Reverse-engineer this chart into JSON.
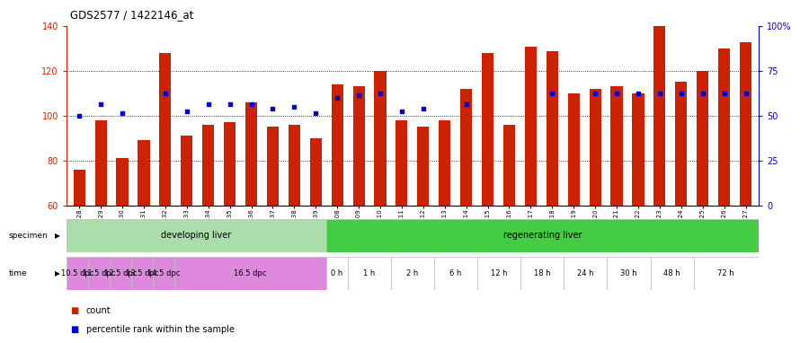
{
  "title": "GDS2577 / 1422146_at",
  "samples": [
    "GSM161128",
    "GSM161129",
    "GSM161130",
    "GSM161131",
    "GSM161132",
    "GSM161133",
    "GSM161134",
    "GSM161135",
    "GSM161136",
    "GSM161137",
    "GSM161138",
    "GSM161139",
    "GSM161108",
    "GSM161109",
    "GSM161110",
    "GSM161111",
    "GSM161112",
    "GSM161113",
    "GSM161114",
    "GSM161115",
    "GSM161116",
    "GSM161117",
    "GSM161118",
    "GSM161119",
    "GSM161120",
    "GSM161121",
    "GSM161122",
    "GSM161123",
    "GSM161124",
    "GSM161125",
    "GSM161126",
    "GSM161127"
  ],
  "bar_values": [
    76,
    98,
    81,
    89,
    128,
    91,
    96,
    97,
    106,
    95,
    96,
    90,
    114,
    113,
    120,
    98,
    95,
    98,
    112,
    128,
    96,
    131,
    129,
    110,
    112,
    113,
    110,
    140,
    115,
    120,
    130,
    133
  ],
  "dot_values": [
    100,
    105,
    101,
    null,
    110,
    102,
    105,
    105,
    105,
    103,
    104,
    101,
    108,
    109,
    110,
    102,
    103,
    null,
    105,
    null,
    null,
    null,
    110,
    null,
    110,
    110,
    110,
    110,
    110,
    110,
    110,
    110
  ],
  "bar_color": "#cc2200",
  "dot_color": "#0000cc",
  "ylim_left": [
    60,
    140
  ],
  "ylim_right": [
    0,
    100
  ],
  "yticks_left": [
    60,
    80,
    100,
    120,
    140
  ],
  "yticks_right": [
    0,
    25,
    50,
    75,
    100
  ],
  "grid_values": [
    80,
    100,
    120
  ],
  "specimen_groups": [
    {
      "label": "developing liver",
      "start": 0,
      "end": 11,
      "color": "#aaddaa"
    },
    {
      "label": "regenerating liver",
      "start": 12,
      "end": 31,
      "color": "#44cc44"
    }
  ],
  "time_groups": [
    {
      "label": "10.5 dpc",
      "start": 0,
      "end": 0,
      "color": "#dd88dd"
    },
    {
      "label": "11.5 dpc",
      "start": 1,
      "end": 1,
      "color": "#dd88dd"
    },
    {
      "label": "12.5 dpc",
      "start": 2,
      "end": 2,
      "color": "#dd88dd"
    },
    {
      "label": "13.5 dpc",
      "start": 3,
      "end": 3,
      "color": "#dd88dd"
    },
    {
      "label": "14.5 dpc",
      "start": 4,
      "end": 4,
      "color": "#dd88dd"
    },
    {
      "label": "16.5 dpc",
      "start": 5,
      "end": 11,
      "color": "#dd88dd"
    },
    {
      "label": "0 h",
      "start": 12,
      "end": 12,
      "color": "#ffffff"
    },
    {
      "label": "1 h",
      "start": 13,
      "end": 14,
      "color": "#ffffff"
    },
    {
      "label": "2 h",
      "start": 15,
      "end": 16,
      "color": "#ffffff"
    },
    {
      "label": "6 h",
      "start": 17,
      "end": 18,
      "color": "#ffffff"
    },
    {
      "label": "12 h",
      "start": 19,
      "end": 20,
      "color": "#ffffff"
    },
    {
      "label": "18 h",
      "start": 21,
      "end": 22,
      "color": "#ffffff"
    },
    {
      "label": "24 h",
      "start": 23,
      "end": 24,
      "color": "#ffffff"
    },
    {
      "label": "30 h",
      "start": 25,
      "end": 26,
      "color": "#ffffff"
    },
    {
      "label": "48 h",
      "start": 27,
      "end": 28,
      "color": "#ffffff"
    },
    {
      "label": "72 h",
      "start": 29,
      "end": 31,
      "color": "#ffffff"
    }
  ],
  "legend_items": [
    {
      "color": "#cc2200",
      "label": "count"
    },
    {
      "color": "#0000cc",
      "label": "percentile rank within the sample"
    }
  ],
  "bg_color": "#ffffff",
  "plot_bg": "#ffffff",
  "bar_width": 0.55
}
